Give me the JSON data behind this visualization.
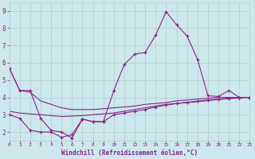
{
  "xlabel": "Windchill (Refroidissement éolien,°C)",
  "xlim": [
    0,
    23
  ],
  "ylim": [
    1.5,
    9.5
  ],
  "xticks": [
    0,
    1,
    2,
    3,
    4,
    5,
    6,
    7,
    8,
    9,
    10,
    11,
    12,
    13,
    14,
    15,
    16,
    17,
    18,
    19,
    20,
    21,
    22,
    23
  ],
  "yticks": [
    2,
    3,
    4,
    5,
    6,
    7,
    8,
    9
  ],
  "background_color": "#cde8ec",
  "grid_color": "#b0cccc",
  "line_color": "#882288",
  "series": [
    {
      "x": [
        0,
        1,
        2,
        3,
        4,
        5,
        6,
        7,
        8,
        9,
        10,
        11,
        12,
        13,
        14,
        15,
        16,
        17,
        18,
        19,
        20,
        21,
        22,
        23
      ],
      "y": [
        5.7,
        4.4,
        4.4,
        2.8,
        2.1,
        2.0,
        1.65,
        2.75,
        2.6,
        2.6,
        4.4,
        5.9,
        6.5,
        6.6,
        7.6,
        8.95,
        8.2,
        7.55,
        6.2,
        4.1,
        4.05,
        4.4,
        4.0,
        4.0
      ],
      "style": "-",
      "marker": "+"
    },
    {
      "x": [
        0,
        1,
        2,
        3,
        4,
        5,
        6,
        7,
        8,
        9,
        10,
        11,
        12,
        13,
        14,
        15,
        16,
        17,
        18,
        19,
        20,
        21,
        22,
        23
      ],
      "y": [
        5.7,
        4.4,
        4.3,
        3.8,
        3.6,
        3.4,
        3.3,
        3.3,
        3.3,
        3.35,
        3.4,
        3.45,
        3.5,
        3.6,
        3.65,
        3.7,
        3.8,
        3.85,
        3.9,
        3.95,
        4.0,
        4.0,
        4.0,
        4.0
      ],
      "style": "-",
      "marker": null
    },
    {
      "x": [
        0,
        1,
        2,
        3,
        4,
        5,
        6,
        7,
        8,
        9,
        10,
        11,
        12,
        13,
        14,
        15,
        16,
        17,
        18,
        19,
        20,
        21,
        22,
        23
      ],
      "y": [
        3.2,
        3.1,
        3.05,
        3.0,
        2.95,
        2.9,
        2.92,
        2.95,
        3.0,
        3.05,
        3.1,
        3.2,
        3.3,
        3.4,
        3.5,
        3.6,
        3.65,
        3.7,
        3.75,
        3.82,
        3.88,
        3.93,
        3.97,
        4.0
      ],
      "style": "-",
      "marker": null
    },
    {
      "x": [
        0,
        1,
        2,
        3,
        4,
        5,
        6,
        7,
        8,
        9,
        10,
        11,
        12,
        13,
        14,
        15,
        16,
        17,
        18,
        19,
        20,
        21,
        22,
        23
      ],
      "y": [
        3.0,
        2.8,
        2.1,
        2.0,
        2.0,
        1.7,
        1.85,
        2.75,
        2.6,
        2.6,
        3.0,
        3.1,
        3.2,
        3.3,
        3.45,
        3.55,
        3.65,
        3.72,
        3.78,
        3.85,
        3.9,
        3.95,
        4.0,
        4.0
      ],
      "style": "-",
      "marker": "+"
    }
  ]
}
